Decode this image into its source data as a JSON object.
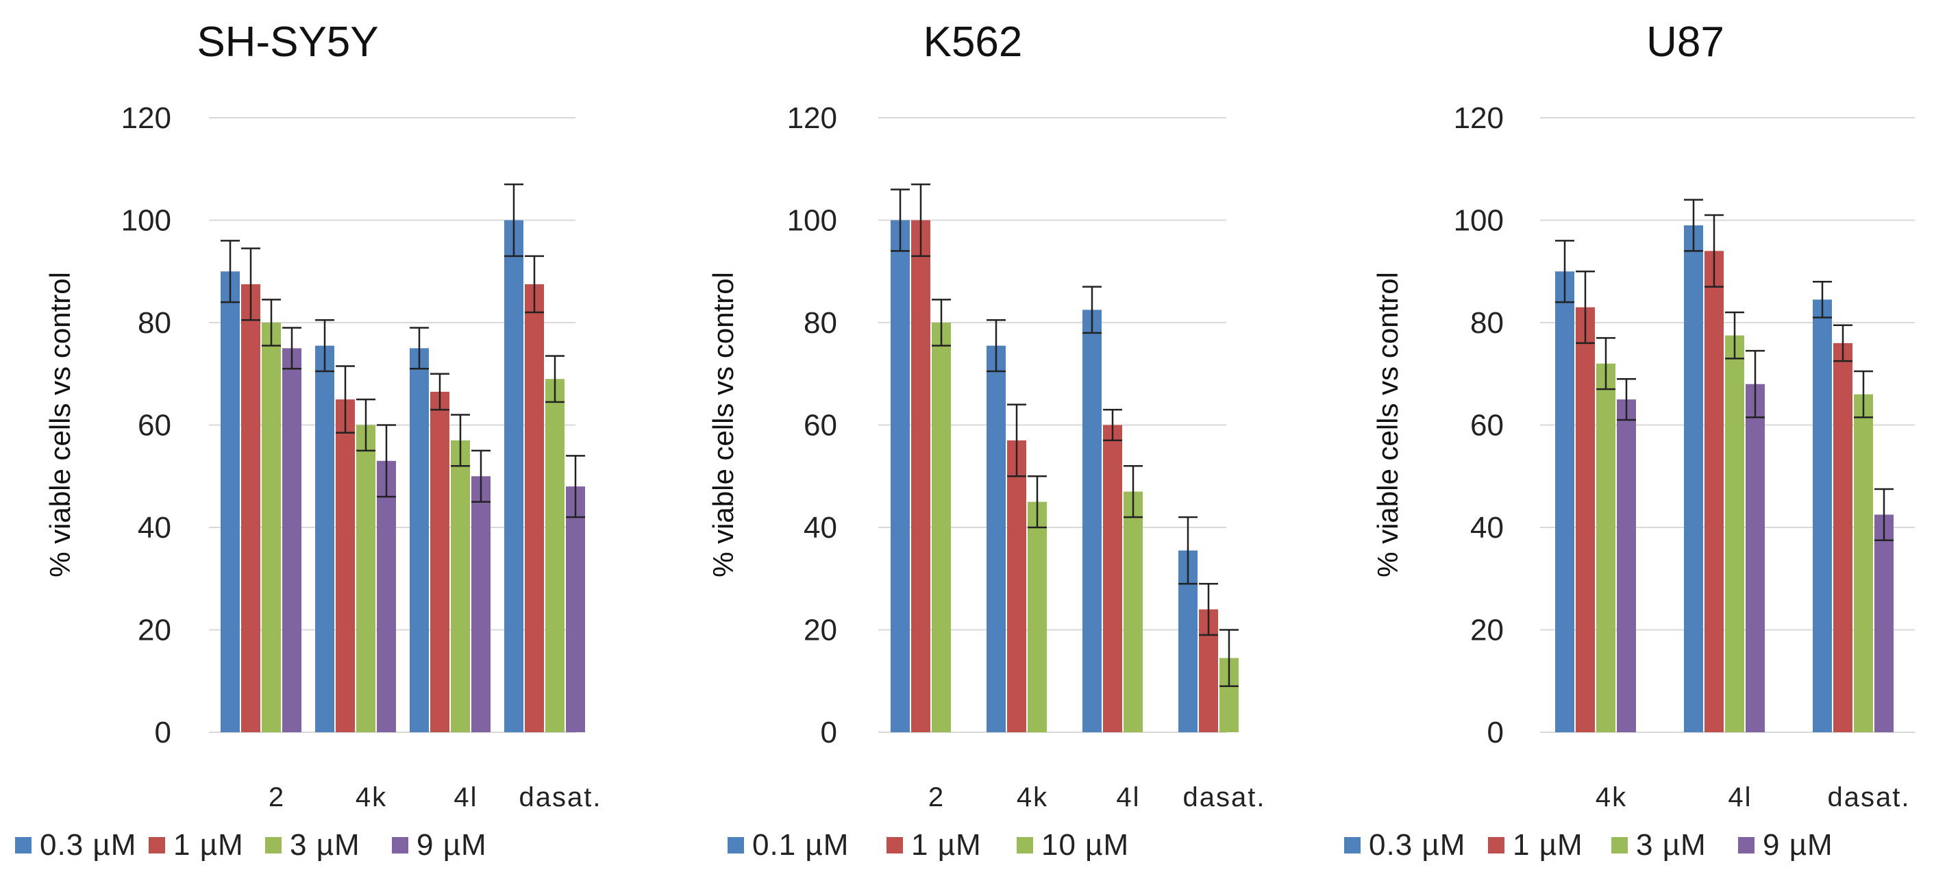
{
  "chart_data": [
    {
      "type": "bar",
      "title": "SH-SY5Y",
      "ylabel": "% viable cells vs control",
      "xlabel": "",
      "ylim": [
        0,
        120
      ],
      "yticks": [
        "0",
        "20",
        "40",
        "60",
        "80",
        "100",
        "120"
      ],
      "categories": [
        "2",
        "4k",
        "4l",
        "dasat."
      ],
      "series": [
        {
          "name": "0.3 µM",
          "color": "#4f81bd",
          "values": [
            90,
            75.5,
            75,
            100
          ],
          "errors": [
            6,
            5,
            4,
            7
          ]
        },
        {
          "name": "1 µM",
          "color": "#c0504d",
          "values": [
            87.5,
            65,
            66.5,
            87.5
          ],
          "errors": [
            7,
            6.5,
            3.5,
            5.5
          ]
        },
        {
          "name": "3 µM",
          "color": "#9bbb59",
          "values": [
            80,
            60,
            57,
            69
          ],
          "errors": [
            4.5,
            5,
            5,
            4.5
          ]
        },
        {
          "name": "9 µM",
          "color": "#8064a2",
          "values": [
            75,
            53,
            50,
            48
          ],
          "errors": [
            4,
            7,
            5,
            6
          ]
        }
      ]
    },
    {
      "type": "bar",
      "title": "K562",
      "ylabel": "% viable cells vs control",
      "xlabel": "",
      "ylim": [
        0,
        120
      ],
      "yticks": [
        "0",
        "20",
        "40",
        "60",
        "80",
        "100",
        "120"
      ],
      "categories": [
        "2",
        "4k",
        "4l",
        "dasat."
      ],
      "series": [
        {
          "name": "0.1 µM",
          "color": "#4f81bd",
          "values": [
            100,
            75.5,
            82.5,
            35.5
          ],
          "errors": [
            6,
            5,
            4.5,
            6.5
          ]
        },
        {
          "name": "1 µM",
          "color": "#c0504d",
          "values": [
            100,
            57,
            60,
            24
          ],
          "errors": [
            7,
            7,
            3,
            5
          ]
        },
        {
          "name": "10 µM",
          "color": "#9bbb59",
          "values": [
            80,
            45,
            47,
            14.5
          ],
          "errors": [
            4.5,
            5,
            5,
            5.5
          ]
        }
      ]
    },
    {
      "type": "bar",
      "title": "U87",
      "ylabel": "% viable cells vs control",
      "xlabel": "",
      "ylim": [
        0,
        120
      ],
      "yticks": [
        "0",
        "20",
        "40",
        "60",
        "80",
        "100",
        "120"
      ],
      "categories": [
        "4k",
        "4l",
        "dasat."
      ],
      "series": [
        {
          "name": "0.3 µM",
          "color": "#4f81bd",
          "values": [
            90,
            99,
            84.5
          ],
          "errors": [
            6,
            5,
            3.5
          ]
        },
        {
          "name": "1 µM",
          "color": "#c0504d",
          "values": [
            83,
            94,
            76
          ],
          "errors": [
            7,
            7,
            3.5
          ]
        },
        {
          "name": "3 µM",
          "color": "#9bbb59",
          "values": [
            72,
            77.5,
            66
          ],
          "errors": [
            5,
            4.5,
            4.5
          ]
        },
        {
          "name": "9 µM",
          "color": "#8064a2",
          "values": [
            65,
            68,
            42.5
          ],
          "errors": [
            4,
            6.5,
            5
          ]
        }
      ]
    }
  ]
}
